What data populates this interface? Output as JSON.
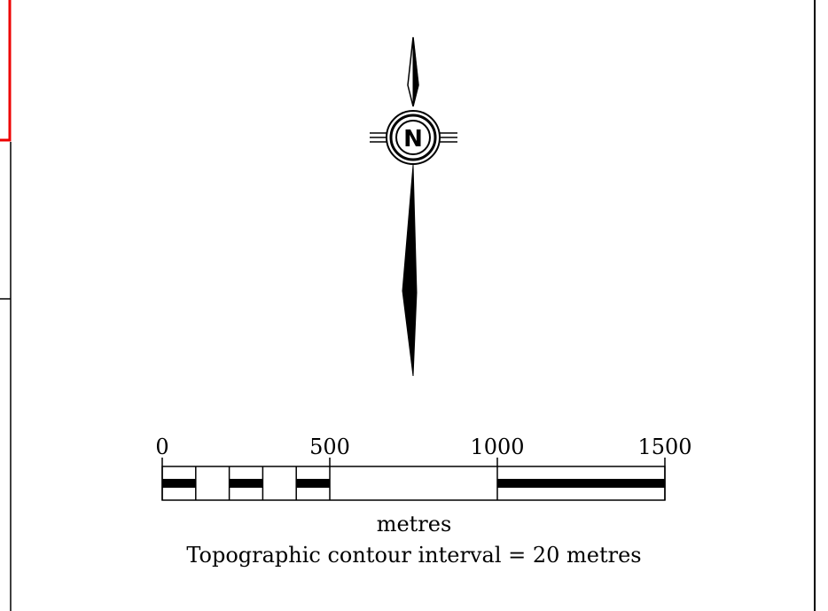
{
  "north_arrow": {
    "label": "N"
  },
  "scale_bar": {
    "ticks": [
      0,
      500,
      1000,
      1500
    ],
    "unit": "metres"
  },
  "note": "Topographic contour interval = 20 metres"
}
